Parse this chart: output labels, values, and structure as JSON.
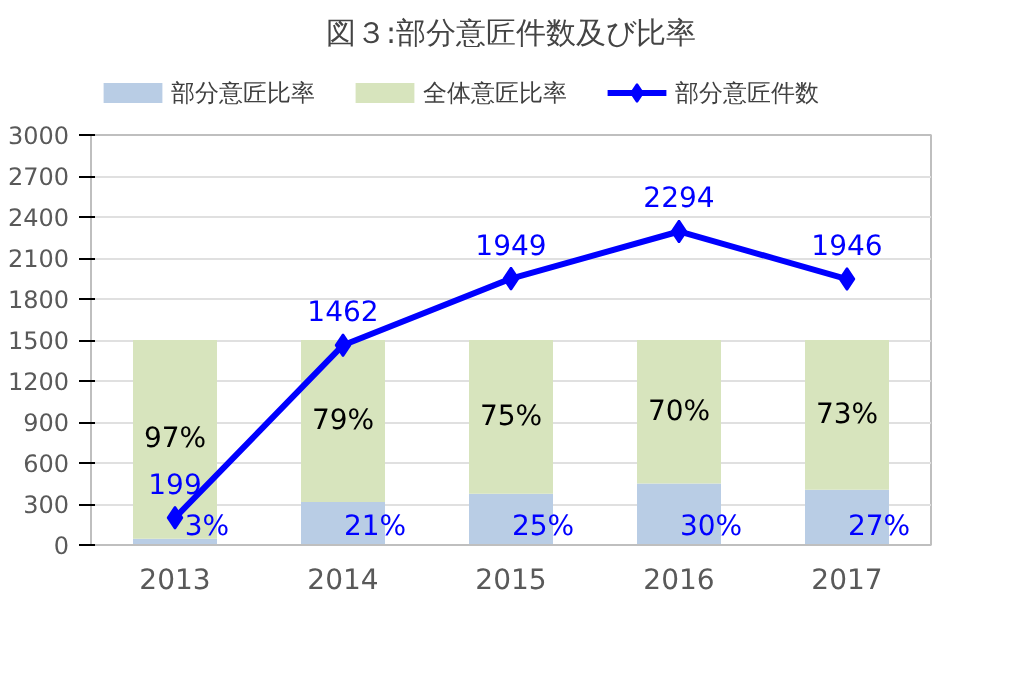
{
  "chart_data": {
    "type": "bar",
    "title": "図３:部分意匠件数及び比率",
    "categories": [
      "2013",
      "2014",
      "2015",
      "2016",
      "2017"
    ],
    "stacked": true,
    "series": [
      {
        "name": "部分意匠比率",
        "color": "#b9cde5",
        "axis": "y2",
        "values": [
          3,
          21,
          25,
          30,
          27
        ],
        "value_labels": [
          "3%",
          "21%",
          "25%",
          "30%",
          "27%"
        ]
      },
      {
        "name": "全体意匠比率",
        "color": "#d7e4bd",
        "axis": "y2",
        "values": [
          97,
          79,
          75,
          70,
          73
        ],
        "value_labels": [
          "97%",
          "79%",
          "75%",
          "70%",
          "73%"
        ]
      },
      {
        "name": "部分意匠件数",
        "type": "line",
        "color": "#0000ff",
        "values": [
          199,
          1462,
          1949,
          2294,
          1946
        ]
      }
    ],
    "data_labels": true,
    "y2lim": [
      0,
      200
    ],
    "ylim": [
      0,
      3000
    ],
    "yticks": [
      0,
      300,
      600,
      900,
      1200,
      1500,
      1800,
      2100,
      2400,
      2700,
      3000
    ],
    "grid": "y",
    "legend": "top",
    "marker": "diamond",
    "line_style": "solid"
  }
}
